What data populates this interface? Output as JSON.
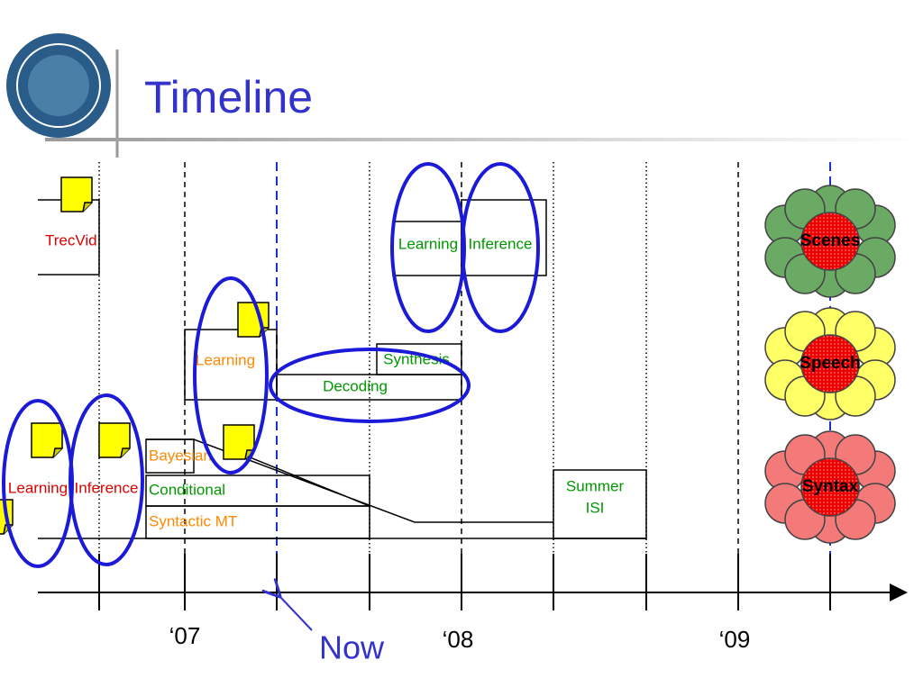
{
  "header": {
    "title": "Timeline"
  },
  "axis": {
    "labels": [
      "‘07",
      "‘08",
      "‘09"
    ],
    "now": "Now"
  },
  "tasks": {
    "trecvid": "TrecVid",
    "top": [
      "Learning",
      "Inference"
    ],
    "middle": [
      "Learning",
      "Synthesis",
      "Decoding"
    ],
    "bottom": [
      "Learning",
      "Inference",
      "Bayesian",
      "Conditional",
      "Syntactic MT"
    ],
    "summer": [
      "Summer",
      "ISI"
    ]
  },
  "flowers": [
    "Scenes",
    "Speech",
    "Syntax"
  ]
}
